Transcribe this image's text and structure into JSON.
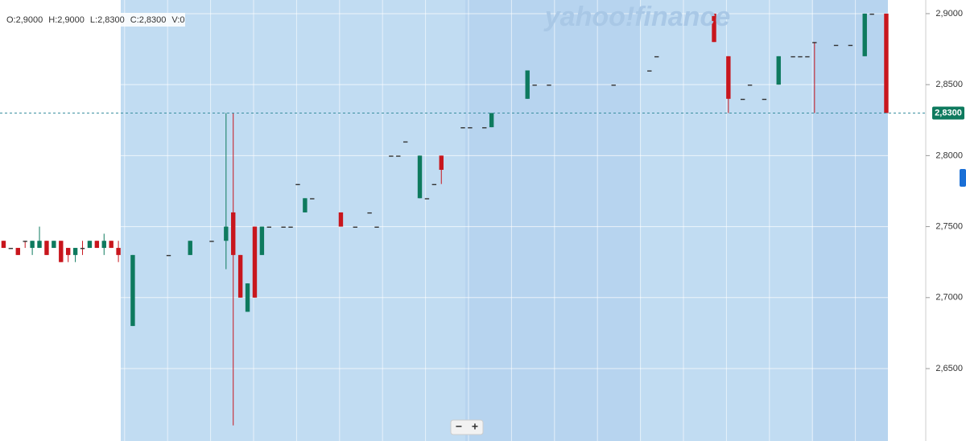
{
  "chart_data": {
    "type": "candlestick",
    "watermark": "yahoo!finance",
    "info": [
      "O:2,9000",
      "H:2,9000",
      "L:2,8300",
      "C:2,8300",
      "V:0"
    ],
    "zoom_buttons": [
      "−",
      "+"
    ],
    "x": [
      0,
      1,
      2,
      3,
      4,
      5,
      6,
      7,
      8,
      9,
      10,
      11,
      12,
      13,
      14,
      15,
      16,
      18,
      23,
      26,
      29,
      31,
      32,
      33,
      34,
      35,
      36,
      37,
      39,
      40,
      41,
      42,
      43,
      47,
      49,
      51,
      52,
      54,
      55,
      56,
      58,
      59,
      60,
      61,
      64,
      65,
      67,
      68,
      73,
      74,
      76,
      85,
      90,
      91,
      99,
      101,
      103,
      104,
      106,
      108,
      110,
      111,
      112,
      113,
      116,
      118,
      120,
      121,
      123
    ],
    "open": [
      2.74,
      2.735,
      2.735,
      2.74,
      2.735,
      2.735,
      2.74,
      2.735,
      2.74,
      2.735,
      2.73,
      2.735,
      2.735,
      2.74,
      2.735,
      2.74,
      2.735,
      2.68,
      2.73,
      2.73,
      2.74,
      2.74,
      2.76,
      2.73,
      2.69,
      2.75,
      2.73,
      2.75,
      2.75,
      2.75,
      2.78,
      2.76,
      2.77,
      2.76,
      2.75,
      2.76,
      2.75,
      2.8,
      2.8,
      2.81,
      2.77,
      2.77,
      2.78,
      2.8,
      2.82,
      2.82,
      2.82,
      2.82,
      2.84,
      2.85,
      2.85,
      2.85,
      2.86,
      2.87,
      2.9,
      2.87,
      2.84,
      2.85,
      2.84,
      2.85,
      2.87,
      2.87,
      2.87,
      2.88,
      2.878,
      2.878,
      2.87,
      2.9,
      2.9
    ],
    "high": [
      2.74,
      2.735,
      2.735,
      2.74,
      2.74,
      2.75,
      2.74,
      2.74,
      2.74,
      2.735,
      2.735,
      2.74,
      2.74,
      2.74,
      2.745,
      2.74,
      2.74,
      2.73,
      2.73,
      2.74,
      2.74,
      2.83,
      2.83,
      2.73,
      2.71,
      2.75,
      2.75,
      2.75,
      2.75,
      2.75,
      2.78,
      2.77,
      2.77,
      2.76,
      2.75,
      2.76,
      2.75,
      2.8,
      2.8,
      2.81,
      2.8,
      2.77,
      2.78,
      2.8,
      2.82,
      2.82,
      2.82,
      2.83,
      2.86,
      2.85,
      2.85,
      2.85,
      2.86,
      2.87,
      2.9,
      2.87,
      2.84,
      2.85,
      2.84,
      2.87,
      2.87,
      2.87,
      2.87,
      2.88,
      2.878,
      2.878,
      2.9,
      2.9,
      2.9
    ],
    "low": [
      2.735,
      2.735,
      2.73,
      2.735,
      2.73,
      2.735,
      2.73,
      2.735,
      2.725,
      2.725,
      2.725,
      2.73,
      2.735,
      2.735,
      2.73,
      2.735,
      2.725,
      2.68,
      2.73,
      2.73,
      2.74,
      2.72,
      2.61,
      2.7,
      2.69,
      2.7,
      2.73,
      2.75,
      2.75,
      2.75,
      2.78,
      2.76,
      2.77,
      2.75,
      2.75,
      2.76,
      2.75,
      2.8,
      2.8,
      2.81,
      2.77,
      2.77,
      2.78,
      2.78,
      2.82,
      2.82,
      2.82,
      2.82,
      2.84,
      2.85,
      2.85,
      2.85,
      2.86,
      2.87,
      2.88,
      2.83,
      2.84,
      2.85,
      2.84,
      2.85,
      2.87,
      2.87,
      2.87,
      2.83,
      2.878,
      2.878,
      2.87,
      2.9,
      2.83
    ],
    "close": [
      2.735,
      2.735,
      2.73,
      2.74,
      2.74,
      2.74,
      2.73,
      2.74,
      2.725,
      2.73,
      2.735,
      2.735,
      2.74,
      2.735,
      2.74,
      2.735,
      2.73,
      2.73,
      2.73,
      2.74,
      2.74,
      2.75,
      2.73,
      2.7,
      2.71,
      2.7,
      2.75,
      2.75,
      2.75,
      2.75,
      2.78,
      2.77,
      2.77,
      2.75,
      2.75,
      2.76,
      2.75,
      2.8,
      2.8,
      2.81,
      2.8,
      2.77,
      2.78,
      2.79,
      2.82,
      2.82,
      2.82,
      2.83,
      2.86,
      2.85,
      2.85,
      2.85,
      2.86,
      2.87,
      2.88,
      2.84,
      2.84,
      2.85,
      2.84,
      2.87,
      2.87,
      2.87,
      2.87,
      2.88,
      2.878,
      2.878,
      2.9,
      2.9,
      2.83
    ],
    "up_color": "#0e7a5e",
    "down_color": "#c8161d",
    "flat_color": "#333333",
    "xlim": [
      -0.5,
      128.5
    ],
    "ylim": [
      2.599,
      2.9096
    ],
    "yticks": [
      {
        "value": 2.65,
        "label": "2,6500"
      },
      {
        "value": 2.7,
        "label": "2,7000"
      },
      {
        "value": 2.75,
        "label": "2,7500"
      },
      {
        "value": 2.8,
        "label": "2,8000"
      },
      {
        "value": 2.85,
        "label": "2,8500"
      },
      {
        "value": 2.9,
        "label": "2,9000"
      }
    ],
    "last_price": {
      "value": 2.83,
      "label": "2,8300"
    },
    "grid": true
  }
}
